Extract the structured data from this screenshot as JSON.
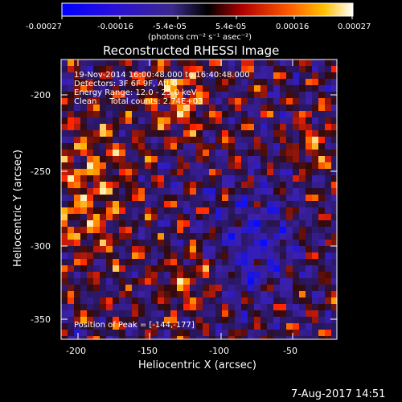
{
  "colorbar": {
    "ticks": [
      "-0.00027",
      "-0.00016",
      "-5.4e-05",
      "5.4e-05",
      "0.00016",
      "0.00027"
    ],
    "units": "(photons cm⁻² s⁻¹ asec⁻²)",
    "min": -0.00027,
    "max": 0.00027
  },
  "title": "Reconstructed RHESSI Image",
  "info": {
    "time": "19-Nov-2014 16:00:48.000 to 16:40:48.000",
    "detectors": "Detectors: 3F 6F 9F, Att 0",
    "energy": "Energy Range: 12.0 - 25.0 keV",
    "clean": "Clean     Total counts: 2.74E+03",
    "peak": "Position of Peak = [-144,-177]"
  },
  "axes": {
    "xlabel": "Heliocentric X (arcsec)",
    "ylabel": "Heliocentric Y (arcsec)",
    "xticks": [
      "-200",
      "-150",
      "-100",
      "-50"
    ],
    "yticks": [
      "-200",
      "-250",
      "-300",
      "-350"
    ]
  },
  "footer": {
    "timestamp": "7-Aug-2017 14:51"
  },
  "colors": {
    "background": "#000000",
    "frame": "#ffffff"
  }
}
